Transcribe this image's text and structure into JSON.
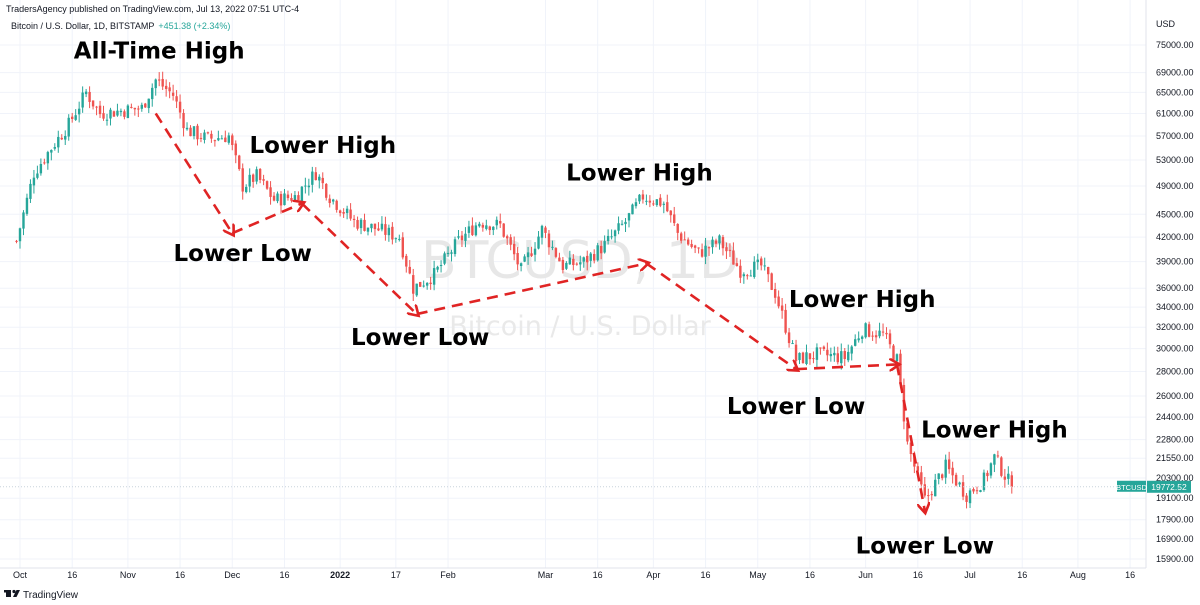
{
  "header": {
    "publisher": "TradersAgency published on TradingView.com, Jul 13, 2022 07:51 UTC-4",
    "symbol_line": "Bitcoin / U.S. Dollar, 1D, BITSTAMP",
    "change": "+451.38 (+2.34%)"
  },
  "watermark": {
    "ticker": "BTCUSD, 1D",
    "name": "Bitcoin / U.S. Dollar"
  },
  "footer": {
    "brand": "TradingView",
    "brand_icon": "tradingview-logo-icon"
  },
  "colors": {
    "up": "#26a69a",
    "down": "#ef5350",
    "annotation_line": "#e02424",
    "price_badge": "#26a69a"
  },
  "chart_data": {
    "type": "candlestick",
    "y_axis": {
      "unit": "USD",
      "scale": "log",
      "ticks": [
        "75000.00",
        "69000.00",
        "65000.00",
        "61000.00",
        "57000.00",
        "53000.00",
        "49000.00",
        "45000.00",
        "42000.00",
        "39000.00",
        "36000.00",
        "34000.00",
        "32000.00",
        "30000.00",
        "28000.00",
        "26000.00",
        "24400.00",
        "22800.00",
        "21550.00",
        "20300.00",
        "19100.00",
        "17900.00",
        "16900.00",
        "15900.00"
      ]
    },
    "x_axis": {
      "ticks": [
        {
          "date": "2021-10-01",
          "label": "Oct"
        },
        {
          "date": "2021-10-16",
          "label": "16"
        },
        {
          "date": "2021-11-01",
          "label": "Nov"
        },
        {
          "date": "2021-11-16",
          "label": "16"
        },
        {
          "date": "2021-12-01",
          "label": "Dec"
        },
        {
          "date": "2021-12-16",
          "label": "16"
        },
        {
          "date": "2022-01-01",
          "label": "2022"
        },
        {
          "date": "2022-01-17",
          "label": "17"
        },
        {
          "date": "2022-02-01",
          "label": "Feb"
        },
        {
          "date": "2022-03-01",
          "label": "Mar"
        },
        {
          "date": "2022-03-16",
          "label": "16"
        },
        {
          "date": "2022-04-01",
          "label": "Apr"
        },
        {
          "date": "2022-04-16",
          "label": "16"
        },
        {
          "date": "2022-05-01",
          "label": "May"
        },
        {
          "date": "2022-05-16",
          "label": "16"
        },
        {
          "date": "2022-06-01",
          "label": "Jun"
        },
        {
          "date": "2022-06-16",
          "label": "16"
        },
        {
          "date": "2022-07-01",
          "label": "Jul"
        },
        {
          "date": "2022-07-16",
          "label": "16"
        },
        {
          "date": "2022-08-01",
          "label": "Aug"
        },
        {
          "date": "2022-08-16",
          "label": "16"
        }
      ]
    },
    "last_price": {
      "label": "BTCUSD",
      "value": "19772.52"
    },
    "price_path": [
      {
        "date": "2021-09-30",
        "close": 41500
      },
      {
        "date": "2021-10-05",
        "close": 51000
      },
      {
        "date": "2021-10-10",
        "close": 55000
      },
      {
        "date": "2021-10-15",
        "close": 59000
      },
      {
        "date": "2021-10-20",
        "close": 65000
      },
      {
        "date": "2021-10-24",
        "close": 61000
      },
      {
        "date": "2021-10-30",
        "close": 61500
      },
      {
        "date": "2021-11-05",
        "close": 62000
      },
      {
        "date": "2021-11-09",
        "close": 67500
      },
      {
        "date": "2021-11-14",
        "close": 64500
      },
      {
        "date": "2021-11-18",
        "close": 58000
      },
      {
        "date": "2021-11-24",
        "close": 56500
      },
      {
        "date": "2021-11-30",
        "close": 57000
      },
      {
        "date": "2021-12-04",
        "close": 49000
      },
      {
        "date": "2021-12-08",
        "close": 50500
      },
      {
        "date": "2021-12-13",
        "close": 47000
      },
      {
        "date": "2021-12-19",
        "close": 47500
      },
      {
        "date": "2021-12-25",
        "close": 51000
      },
      {
        "date": "2021-12-29",
        "close": 47500
      },
      {
        "date": "2022-01-05",
        "close": 44000
      },
      {
        "date": "2022-01-12",
        "close": 43000
      },
      {
        "date": "2022-01-18",
        "close": 42000
      },
      {
        "date": "2022-01-22",
        "close": 36000
      },
      {
        "date": "2022-01-28",
        "close": 37500
      },
      {
        "date": "2022-02-04",
        "close": 41500
      },
      {
        "date": "2022-02-10",
        "close": 44000
      },
      {
        "date": "2022-02-16",
        "close": 43500
      },
      {
        "date": "2022-02-22",
        "close": 38000
      },
      {
        "date": "2022-02-28",
        "close": 43000
      },
      {
        "date": "2022-03-06",
        "close": 38500
      },
      {
        "date": "2022-03-12",
        "close": 39000
      },
      {
        "date": "2022-03-18",
        "close": 41000
      },
      {
        "date": "2022-03-24",
        "close": 44000
      },
      {
        "date": "2022-03-29",
        "close": 47500
      },
      {
        "date": "2022-04-04",
        "close": 46500
      },
      {
        "date": "2022-04-08",
        "close": 42500
      },
      {
        "date": "2022-04-14",
        "close": 40000
      },
      {
        "date": "2022-04-20",
        "close": 41500
      },
      {
        "date": "2022-04-26",
        "close": 38000
      },
      {
        "date": "2022-05-02",
        "close": 38500
      },
      {
        "date": "2022-05-06",
        "close": 35500
      },
      {
        "date": "2022-05-10",
        "close": 31000
      },
      {
        "date": "2022-05-12",
        "close": 29000
      },
      {
        "date": "2022-05-18",
        "close": 29500
      },
      {
        "date": "2022-05-26",
        "close": 29200
      },
      {
        "date": "2022-05-31",
        "close": 31800
      },
      {
        "date": "2022-06-06",
        "close": 31300
      },
      {
        "date": "2022-06-10",
        "close": 29000
      },
      {
        "date": "2022-06-13",
        "close": 22500
      },
      {
        "date": "2022-06-18",
        "close": 19000
      },
      {
        "date": "2022-06-24",
        "close": 21000
      },
      {
        "date": "2022-06-30",
        "close": 19300
      },
      {
        "date": "2022-07-05",
        "close": 20200
      },
      {
        "date": "2022-07-08",
        "close": 21600
      },
      {
        "date": "2022-07-13",
        "close": 19772
      }
    ],
    "annotations": [
      {
        "text": "All-Time High",
        "date": "2021-11-10",
        "price": 69000
      },
      {
        "text": "Lower Low",
        "date": "2021-12-04",
        "price": 42500
      },
      {
        "text": "Lower High",
        "date": "2021-12-27",
        "price": 51900
      },
      {
        "text": "Lower Low",
        "date": "2022-01-24",
        "price": 33000
      },
      {
        "text": "Lower High",
        "date": "2022-03-28",
        "price": 47800
      },
      {
        "text": "Lower Low",
        "date": "2022-05-12",
        "price": 26800
      },
      {
        "text": "Lower High",
        "date": "2022-05-31",
        "price": 32600
      },
      {
        "text": "Lower Low",
        "date": "2022-06-18",
        "price": 17600
      },
      {
        "text": "Lower High",
        "date": "2022-07-08",
        "price": 22000
      }
    ],
    "trend_path": [
      {
        "date": "2021-11-09",
        "price": 61000
      },
      {
        "date": "2021-12-01",
        "price": 42500
      },
      {
        "date": "2021-12-21",
        "price": 46500
      },
      {
        "date": "2022-01-23",
        "price": 33300
      },
      {
        "date": "2022-03-30",
        "price": 38800
      },
      {
        "date": "2022-05-12",
        "price": 28200
      },
      {
        "date": "2022-06-10",
        "price": 28600
      },
      {
        "date": "2022-06-18",
        "price": 18400
      }
    ]
  }
}
